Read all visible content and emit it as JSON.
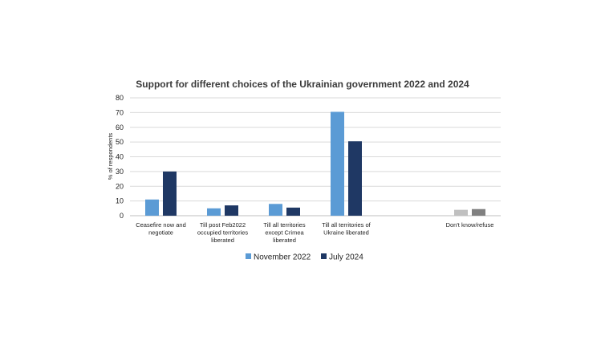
{
  "chart_data": {
    "type": "bar",
    "title": "Support for different choices of the Ukrainian government  2022 and 2024",
    "xlabel": "",
    "ylabel": "% of respondents",
    "ylim": [
      0,
      80
    ],
    "yticks": [
      0,
      10,
      20,
      30,
      40,
      50,
      60,
      70,
      80
    ],
    "grid": true,
    "legend_position": "bottom",
    "categories": [
      [
        "Ceasefire now and",
        "negotiate"
      ],
      [
        "Till post Feb2022",
        "occupied territories",
        "liberated"
      ],
      [
        "Till all territories",
        "except Crimea",
        "liberated"
      ],
      [
        "Till all  territories of",
        "Ukraine liberated"
      ],
      [],
      [
        "Don't know/refuse"
      ]
    ],
    "series": [
      {
        "name": "November 2022",
        "color": "#5b9bd5",
        "values": [
          11,
          5,
          8,
          70.5,
          null,
          4
        ]
      },
      {
        "name": "July 2024",
        "color": "#1f3864",
        "values": [
          30,
          7,
          5.5,
          50.5,
          null,
          4.5
        ]
      }
    ],
    "dontknow_colors": [
      "#c0c0c0",
      "#808080"
    ]
  }
}
